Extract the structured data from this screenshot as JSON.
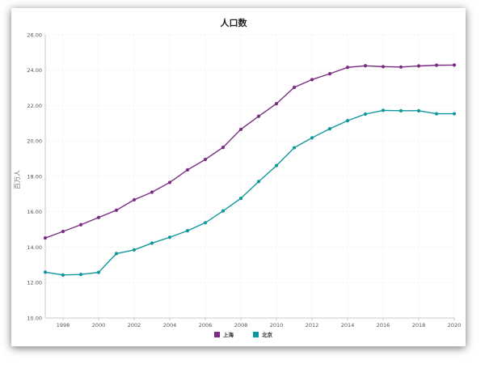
{
  "chart_data": {
    "type": "line",
    "title": "人口数",
    "xlabel": "",
    "ylabel": "百万人",
    "x": [
      1997,
      1998,
      1999,
      2000,
      2001,
      2002,
      2003,
      2004,
      2005,
      2006,
      2007,
      2008,
      2009,
      2010,
      2011,
      2012,
      2013,
      2014,
      2015,
      2016,
      2017,
      2018,
      2019,
      2020
    ],
    "xlim": [
      1997,
      2020
    ],
    "ylim": [
      10,
      26
    ],
    "xticks": [
      1998,
      2000,
      2002,
      2004,
      2006,
      2008,
      2010,
      2012,
      2014,
      2016,
      2018,
      2020
    ],
    "yticks": [
      "10.00",
      "12.00",
      "14.00",
      "16.00",
      "18.00",
      "20.00",
      "22.00",
      "24.00",
      "26.00"
    ],
    "grid": true,
    "legend": "bottom-center",
    "series": [
      {
        "name": "上海",
        "color": "#7b2d84",
        "values": [
          14.52,
          14.89,
          15.27,
          15.68,
          16.09,
          16.68,
          17.11,
          17.66,
          18.37,
          18.96,
          19.64,
          20.66,
          21.4,
          22.11,
          23.03,
          23.47,
          23.8,
          24.16,
          24.25,
          24.2,
          24.18,
          24.24,
          24.28,
          24.29
        ]
      },
      {
        "name": "北京",
        "color": "#0f979c",
        "values": [
          12.59,
          12.43,
          12.46,
          12.58,
          13.64,
          13.85,
          14.23,
          14.56,
          14.93,
          15.38,
          16.05,
          16.76,
          17.71,
          18.61,
          19.62,
          20.18,
          20.69,
          21.15,
          21.52,
          21.73,
          21.71,
          21.71,
          21.54,
          21.54
        ]
      }
    ]
  }
}
